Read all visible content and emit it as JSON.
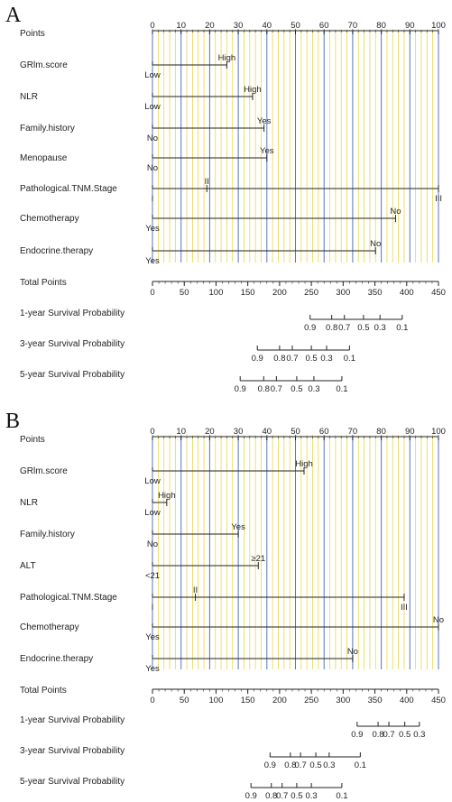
{
  "chart_data": [
    {
      "type": "nomogram",
      "panel": "A",
      "points_axis": {
        "label": "Points",
        "range": [
          0,
          100
        ],
        "ticks": [
          0,
          10,
          20,
          30,
          40,
          50,
          60,
          70,
          80,
          90,
          100
        ]
      },
      "predictors": [
        {
          "name": "GRlm.score",
          "levels": [
            {
              "label": "Low",
              "points": 0
            },
            {
              "label": "High",
              "points": 26
            }
          ]
        },
        {
          "name": "NLR",
          "levels": [
            {
              "label": "Low",
              "points": 0
            },
            {
              "label": "High",
              "points": 35
            }
          ]
        },
        {
          "name": "Family.history",
          "levels": [
            {
              "label": "No",
              "points": 0
            },
            {
              "label": "Yes",
              "points": 39
            }
          ]
        },
        {
          "name": "Menopause",
          "levels": [
            {
              "label": "No",
              "points": 0
            },
            {
              "label": "Yes",
              "points": 40
            }
          ]
        },
        {
          "name": "Pathological.TNM.Stage",
          "levels": [
            {
              "label": "I",
              "points": 0
            },
            {
              "label": "II",
              "points": 19
            },
            {
              "label": "III",
              "points": 100
            }
          ]
        },
        {
          "name": "Chemotherapy",
          "levels": [
            {
              "label": "Yes",
              "points": 0
            },
            {
              "label": "No",
              "points": 85
            }
          ]
        },
        {
          "name": "Endocrine.therapy",
          "levels": [
            {
              "label": "Yes",
              "points": 0
            },
            {
              "label": "No",
              "points": 78
            }
          ]
        }
      ],
      "total_points": {
        "label": "Total Points",
        "range": [
          0,
          450
        ],
        "ticks": [
          0,
          50,
          100,
          150,
          200,
          250,
          300,
          350,
          400,
          450
        ]
      },
      "survival": [
        {
          "name": "1-year Survival Probability",
          "ticks": [
            {
              "label": "0.9",
              "total": 248
            },
            {
              "label": "0.8",
              "total": 282
            },
            {
              "label": "0.7",
              "total": 302
            },
            {
              "label": "0.5",
              "total": 332
            },
            {
              "label": "0.3",
              "total": 358
            },
            {
              "label": "0.1",
              "total": 393
            }
          ]
        },
        {
          "name": "3-year Survival Probability",
          "ticks": [
            {
              "label": "0.9",
              "total": 165
            },
            {
              "label": "0.8",
              "total": 200
            },
            {
              "label": "0.7",
              "total": 220
            },
            {
              "label": "0.5",
              "total": 250
            },
            {
              "label": "0.3",
              "total": 274
            },
            {
              "label": "0.1",
              "total": 310
            }
          ]
        },
        {
          "name": "5-year Survival Probability",
          "ticks": [
            {
              "label": "0.9",
              "total": 138
            },
            {
              "label": "0.8",
              "total": 175
            },
            {
              "label": "0.7",
              "total": 195
            },
            {
              "label": "0.5",
              "total": 227
            },
            {
              "label": "0.3",
              "total": 254
            },
            {
              "label": "0.1",
              "total": 298
            }
          ]
        }
      ]
    },
    {
      "type": "nomogram",
      "panel": "B",
      "points_axis": {
        "label": "Points",
        "range": [
          0,
          100
        ],
        "ticks": [
          0,
          10,
          20,
          30,
          40,
          50,
          60,
          70,
          80,
          90,
          100
        ]
      },
      "predictors": [
        {
          "name": "GRlm.score",
          "levels": [
            {
              "label": "Low",
              "points": 0
            },
            {
              "label": "High",
              "points": 53
            }
          ]
        },
        {
          "name": "NLR",
          "levels": [
            {
              "label": "Low",
              "points": 0
            },
            {
              "label": "High",
              "points": 5
            }
          ]
        },
        {
          "name": "Family.history",
          "levels": [
            {
              "label": "No",
              "points": 0
            },
            {
              "label": "Yes",
              "points": 30
            }
          ]
        },
        {
          "name": "ALT",
          "levels": [
            {
              "label": "<21",
              "points": 0
            },
            {
              "label": "≥21",
              "points": 37
            }
          ]
        },
        {
          "name": "Pathological.TNM.Stage",
          "levels": [
            {
              "label": "I",
              "points": 0
            },
            {
              "label": "II",
              "points": 15
            },
            {
              "label": "III",
              "points": 88
            }
          ]
        },
        {
          "name": "Chemotherapy",
          "levels": [
            {
              "label": "Yes",
              "points": 0
            },
            {
              "label": "No",
              "points": 100
            }
          ]
        },
        {
          "name": "Endocrine.therapy",
          "levels": [
            {
              "label": "Yes",
              "points": 0
            },
            {
              "label": "No",
              "points": 70
            }
          ]
        }
      ],
      "total_points": {
        "label": "Total Points",
        "range": [
          0,
          450
        ],
        "ticks": [
          0,
          50,
          100,
          150,
          200,
          250,
          300,
          350,
          400,
          450
        ]
      },
      "survival": [
        {
          "name": "1-year Survival Probability",
          "ticks": [
            {
              "label": "0.9",
              "total": 322
            },
            {
              "label": "0.8",
              "total": 355
            },
            {
              "label": "0.7",
              "total": 372
            },
            {
              "label": "0.5",
              "total": 397
            },
            {
              "label": "0.3",
              "total": 420
            }
          ]
        },
        {
          "name": "3-year Survival Probability",
          "ticks": [
            {
              "label": "0.9",
              "total": 185
            },
            {
              "label": "0.8",
              "total": 217
            },
            {
              "label": "0.7",
              "total": 233
            },
            {
              "label": "0.5",
              "total": 257
            },
            {
              "label": "0.3",
              "total": 278
            },
            {
              "label": "0.1",
              "total": 327
            }
          ]
        },
        {
          "name": "5-year Survival Probability",
          "ticks": [
            {
              "label": "0.9",
              "total": 155
            },
            {
              "label": "0.8",
              "total": 187
            },
            {
              "label": "0.7",
              "total": 204
            },
            {
              "label": "0.5",
              "total": 227
            },
            {
              "label": "0.3",
              "total": 250
            },
            {
              "label": "0.1",
              "total": 298
            }
          ]
        }
      ]
    }
  ],
  "colors": {
    "major_grid": "#5b74b8",
    "minor_grid": "#e8d84a",
    "axis": "#222222",
    "text": "#222222"
  }
}
